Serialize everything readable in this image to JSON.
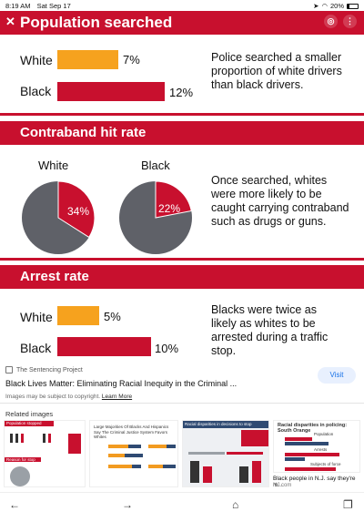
{
  "status": {
    "time": "8:19 AM",
    "date": "Sat Sep 17",
    "battery": "20%"
  },
  "viewer": {
    "close_icon": "close-icon",
    "lens_icon": "lens-icon",
    "more_icon": "more-vertical-icon"
  },
  "infographic": {
    "section1": {
      "heading": "Population searched",
      "white_label": "White",
      "black_label": "Black",
      "white_value": "7%",
      "black_value": "12%",
      "note_lines": [
        "Police searched a smaller",
        "proportion of white drivers",
        "than black drivers."
      ]
    },
    "section2": {
      "heading": "Contraband hit rate",
      "white_label": "White",
      "black_label": "Black",
      "white_value": "34%",
      "black_value": "22%",
      "note_lines": [
        "Once searched, whites",
        "were more likely to be",
        "caught carrying contraband",
        "such as drugs or guns."
      ]
    },
    "section3": {
      "heading": "Arrest rate",
      "white_label": "White",
      "black_label": "Black",
      "white_value": "5%",
      "black_value": "10%",
      "note_lines": [
        "Blacks were twice as",
        "likely as whites to be",
        "arrested during a traffic",
        "stop."
      ]
    },
    "colors": {
      "red": "#c8102e",
      "orange": "#f6a21e",
      "gray": "#5f6168"
    }
  },
  "source": {
    "site": "The Sentencing Project",
    "title": "Black Lives Matter: Eliminating Racial Inequity in the Criminal ...",
    "visit_label": "Visit",
    "copyright_text": "Images may be subject to copyright.",
    "learn_more": "Learn More"
  },
  "related": {
    "heading": "Related images",
    "thumb1_title": "Population stopped",
    "thumb1_sub": "Reason for stop",
    "thumb2_title": "Large Majorities Of Blacks And Hispanics Say The Criminal Justice System Favors Whites",
    "thumb3_title": "Racial disparities in decisions to stop",
    "thumb4_title": "Racial disparities in policing: South Orange",
    "thumb4_rows": [
      "Population",
      "Arrests",
      "Subjects of force"
    ],
    "thumb4_caption": "Black people in N.J. say they're m...",
    "thumb4_source": "NJ.com"
  },
  "nav": {
    "back": "back-arrow-icon",
    "forward": "forward-arrow-icon",
    "home": "home-icon",
    "tabs": "tabs-icon"
  }
}
